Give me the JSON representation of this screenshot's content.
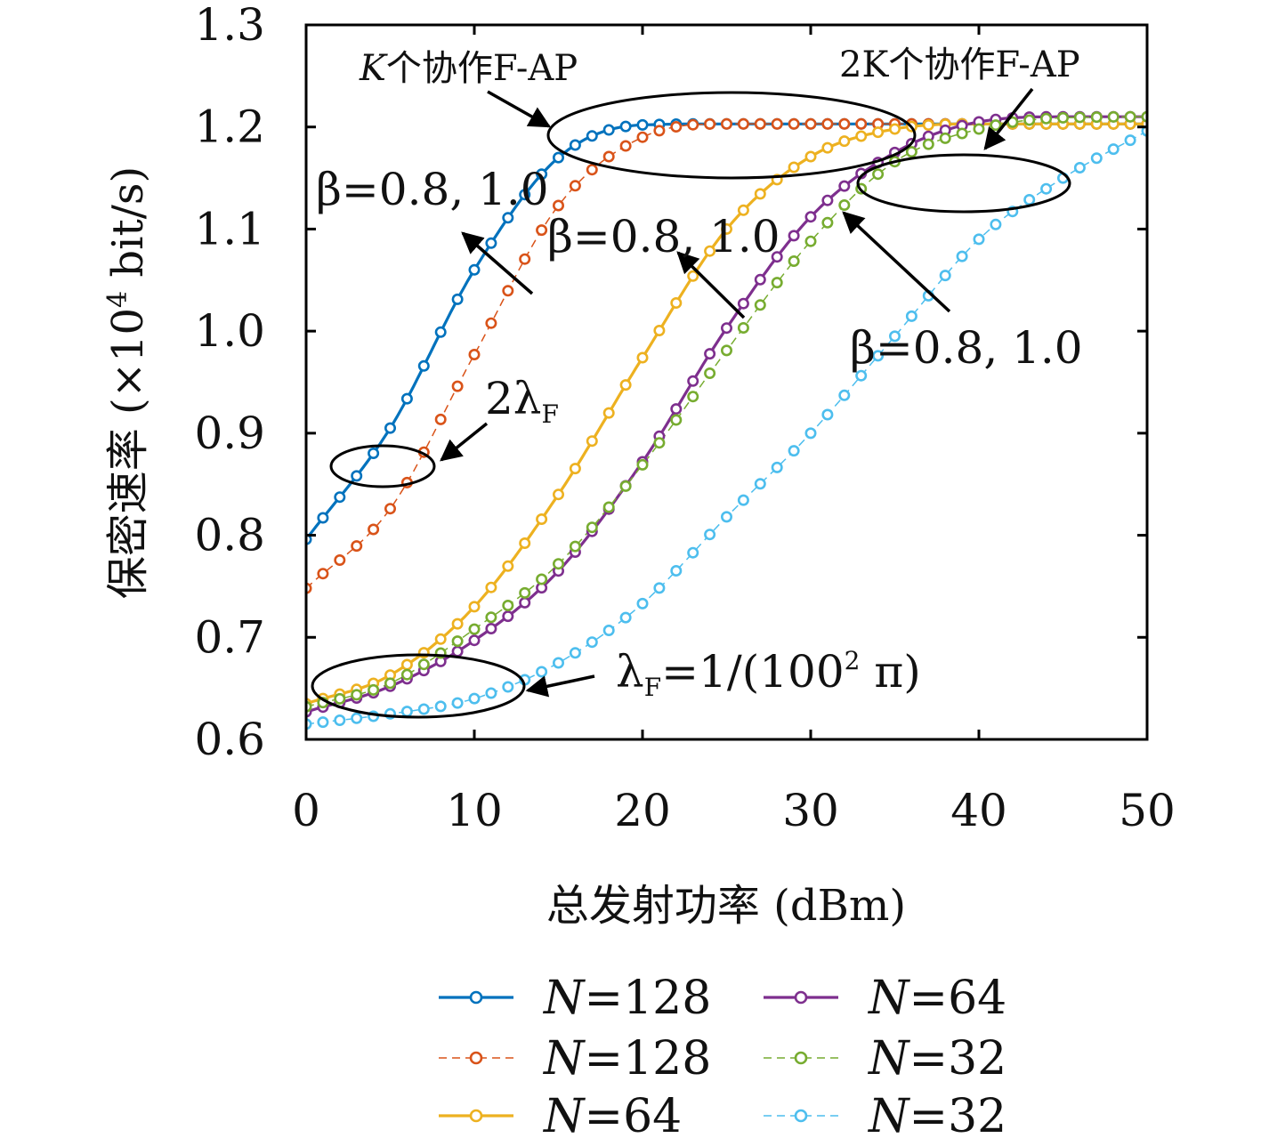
{
  "chart_data": {
    "type": "line",
    "title": "",
    "xlabel": "总发射功率 (dBm)",
    "ylabel": "保密速率 (×10⁴ bit/s)",
    "xlim": [
      0,
      50
    ],
    "ylim": [
      0.6,
      1.3
    ],
    "xticks": [
      0,
      10,
      20,
      30,
      40,
      50
    ],
    "yticks": [
      0.6,
      0.7,
      0.8,
      0.9,
      1.0,
      1.1,
      1.2,
      1.3
    ],
    "xtick_labels": [
      "0",
      "10",
      "20",
      "30",
      "40",
      "50"
    ],
    "ytick_labels": [
      "0.6",
      "0.7",
      "0.8",
      "0.9",
      "1.0",
      "1.1",
      "1.2",
      "1.3"
    ],
    "grid": false,
    "legend_position": "below",
    "series": [
      {
        "name": "N=128",
        "color": "#0072BD",
        "style": "solid",
        "x": [
          0,
          5,
          10,
          15,
          20,
          25,
          30,
          35,
          40,
          45,
          50
        ],
        "y": [
          0.796,
          0.905,
          1.06,
          1.17,
          1.202,
          1.203,
          1.203,
          1.203,
          1.203,
          1.203,
          1.203
        ]
      },
      {
        "name": "N=128",
        "color": "#D95319",
        "style": "dashed",
        "x": [
          0,
          5,
          10,
          15,
          20,
          25,
          30,
          35,
          40,
          45,
          50
        ],
        "y": [
          0.748,
          0.826,
          0.977,
          1.123,
          1.19,
          1.203,
          1.203,
          1.203,
          1.203,
          1.203,
          1.203
        ]
      },
      {
        "name": "N=64",
        "color": "#EDB120",
        "style": "solid",
        "x": [
          0,
          5,
          10,
          15,
          20,
          25,
          30,
          35,
          40,
          45,
          50
        ],
        "y": [
          0.635,
          0.663,
          0.73,
          0.84,
          0.974,
          1.1,
          1.171,
          1.198,
          1.203,
          1.203,
          1.203
        ]
      },
      {
        "name": "N=64",
        "color": "#7E2F8E",
        "style": "solid",
        "x": [
          0,
          5,
          10,
          15,
          20,
          25,
          30,
          35,
          40,
          45,
          50
        ],
        "y": [
          0.627,
          0.652,
          0.697,
          0.765,
          0.872,
          1.003,
          1.112,
          1.175,
          1.205,
          1.21,
          1.21
        ]
      },
      {
        "name": "N=32",
        "color": "#77AC30",
        "style": "dashed",
        "x": [
          0,
          5,
          10,
          15,
          20,
          25,
          30,
          35,
          40,
          45,
          50
        ],
        "y": [
          0.632,
          0.655,
          0.708,
          0.772,
          0.869,
          0.981,
          1.088,
          1.166,
          1.198,
          1.209,
          1.21
        ]
      },
      {
        "name": "N=32",
        "color": "#4DBEEE",
        "style": "dashed",
        "x": [
          0,
          5,
          10,
          15,
          20,
          25,
          30,
          35,
          40,
          45,
          50
        ],
        "y": [
          0.615,
          0.625,
          0.64,
          0.675,
          0.733,
          0.818,
          0.9,
          0.995,
          1.09,
          1.15,
          1.196
        ]
      }
    ],
    "annotations": [
      {
        "id": "k-coop",
        "text_prefix": "K",
        "text_suffix": "个协作F-AP"
      },
      {
        "id": "twok-coop",
        "text_prefix": "2K",
        "text_suffix": "个协作F-AP"
      },
      {
        "id": "beta1",
        "text": "β=0.8, 1.0"
      },
      {
        "id": "beta2",
        "text": "β=0.8, 1.0"
      },
      {
        "id": "beta3",
        "text": "β=0.8, 1.0"
      },
      {
        "id": "two-lambda",
        "text": "2λ",
        "sub": "F"
      },
      {
        "id": "lambda-f",
        "text": "λ",
        "sub": "F",
        "rest": "=1/(100",
        "sup": "2",
        "tail": " π)"
      }
    ],
    "axis_label_exponent": "4",
    "legend": [
      {
        "label": "N=128",
        "color": "#0072BD",
        "style": "solid"
      },
      {
        "label": "N=128",
        "color": "#D95319",
        "style": "dashed"
      },
      {
        "label": "N=64",
        "color": "#EDB120",
        "style": "solid"
      },
      {
        "label": "N=64",
        "color": "#7E2F8E",
        "style": "solid"
      },
      {
        "label": "N=32",
        "color": "#77AC30",
        "style": "dashed"
      },
      {
        "label": "N=32",
        "color": "#4DBEEE",
        "style": "dashed"
      }
    ]
  }
}
